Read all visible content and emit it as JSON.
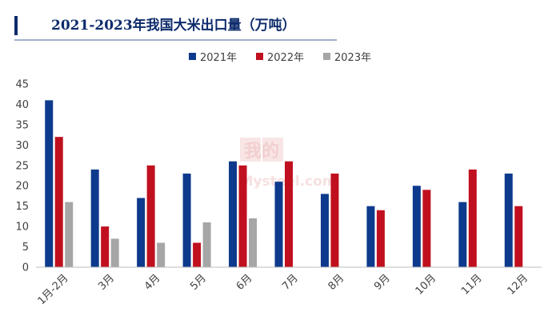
{
  "chart_data": {
    "type": "bar",
    "title": "2021-2023年我国大米出口量（万吨）",
    "categories": [
      "1月-2月",
      "3月",
      "4月",
      "5月",
      "6月",
      "7月",
      "8月",
      "9月",
      "10月",
      "11月",
      "12月"
    ],
    "series": [
      {
        "name": "2021年",
        "color": "#0d3a8c",
        "values": [
          41,
          24,
          17,
          23,
          26,
          21,
          18,
          15,
          20,
          16,
          23
        ]
      },
      {
        "name": "2022年",
        "color": "#c0101f",
        "values": [
          32,
          10,
          25,
          6,
          25,
          26,
          23,
          14,
          19,
          24,
          15
        ]
      },
      {
        "name": "2023年",
        "color": "#a6a6a6",
        "values": [
          16,
          7,
          6,
          11,
          12,
          null,
          null,
          null,
          null,
          null,
          null
        ]
      }
    ],
    "yticks": [
      "0",
      "5",
      "10",
      "15",
      "20",
      "25",
      "30",
      "35",
      "40",
      "45"
    ],
    "ylim": [
      0,
      45
    ],
    "grid": false,
    "legend_position": "top-center"
  },
  "watermark": {
    "logo_text": "我的",
    "sub_text": "Mysteel.com"
  }
}
